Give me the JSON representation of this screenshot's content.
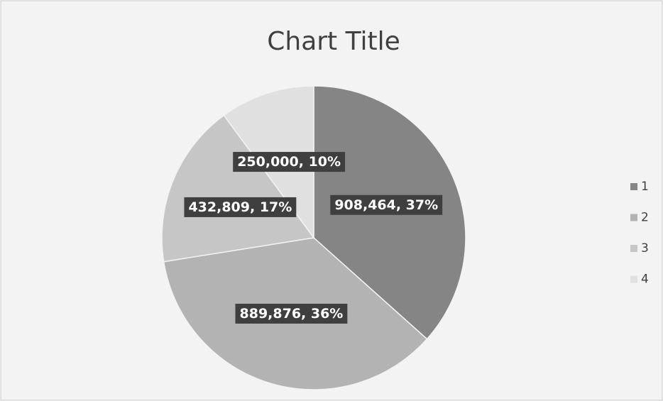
{
  "chart_data": {
    "type": "pie",
    "title": "Chart Title",
    "categories": [
      "1",
      "2",
      "3",
      "4"
    ],
    "values": [
      908464,
      889876,
      432809,
      250000
    ],
    "value_labels": [
      "908,464, 37%",
      "889,876, 36%",
      "432,809, 17%",
      "250,000, 10%"
    ],
    "colors": [
      "#858585",
      "#b3b3b3",
      "#c6c6c6",
      "#e0e0e0"
    ],
    "legend": "right"
  }
}
